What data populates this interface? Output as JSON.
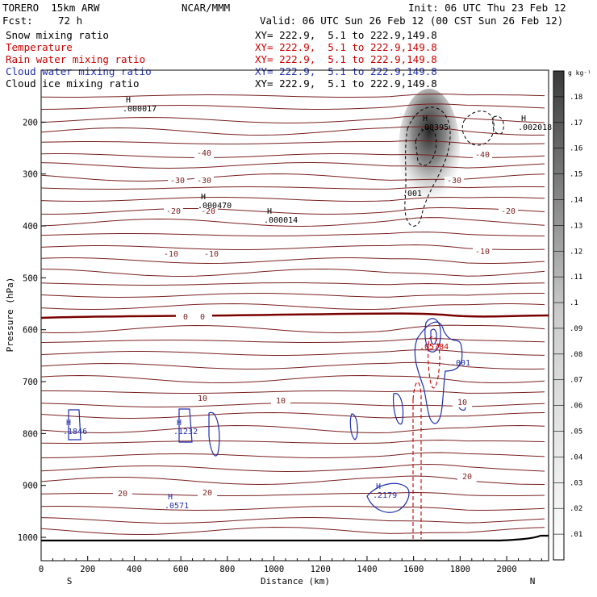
{
  "header": {
    "model": "TORERO  15km ARW",
    "org": "NCAR/MMM",
    "init": "Init: 06 UTC Thu 23 Feb 12",
    "fcst_label": "Fcst:",
    "fcst_value": "72 h",
    "valid": "Valid: 06 UTC Sun 26 Feb 12 (00 CST Sun 26 Feb 12)"
  },
  "legend": [
    {
      "name": "Snow mixing ratio",
      "xy": "XY= 222.9,  5.1 to 222.9,149.8",
      "color": "#000000"
    },
    {
      "name": "Temperature",
      "xy": "XY= 222.9,  5.1 to 222.9,149.8",
      "color": "#cc0000"
    },
    {
      "name": "Rain water mixing ratio",
      "xy": "XY= 222.9,  5.1 to 222.9,149.8",
      "color": "#cc0000"
    },
    {
      "name": "Cloud water mixing ratio",
      "xy": "XY= 222.9,  5.1 to 222.9,149.8",
      "color": "#1f2fb0"
    },
    {
      "name": "Cloud ice mixing ratio",
      "xy": "XY= 222.9,  5.1 to 222.9,149.8",
      "color": "#000000"
    }
  ],
  "chart_data": {
    "type": "cross-section contour",
    "xlabel": "Distance (km)",
    "ylabel": "Pressure (hPa)",
    "xlim": [
      0,
      2180
    ],
    "ylim": [
      1045,
      100
    ],
    "xticks": [
      0,
      200,
      400,
      600,
      800,
      1000,
      1200,
      1400,
      1600,
      1800,
      2000
    ],
    "yticks": [
      200,
      300,
      400,
      500,
      600,
      700,
      800,
      900,
      1000
    ],
    "left_end": "S",
    "right_end": "N",
    "colorbar": {
      "unit": "g kg⁻¹",
      "labels": [
        ".01",
        ".02",
        ".03",
        ".04",
        ".05",
        ".06",
        ".07",
        ".08",
        ".09",
        ".1",
        ".11",
        ".12",
        ".13",
        ".14",
        ".15",
        ".16",
        ".17",
        ".18"
      ]
    },
    "temperature_labels": [
      "-40",
      "-40",
      "-30",
      "-30",
      "-30",
      "-20",
      "-20",
      "-20",
      "-10",
      "-10",
      "-10",
      "0",
      "0",
      "10",
      "10",
      "10",
      "20",
      "20",
      "20"
    ],
    "maxima_labels": [
      {
        "tag": "H",
        "value": ".000017",
        "color": "#000000"
      },
      {
        "tag": "H",
        "value": ".00395",
        "color": "#000000"
      },
      {
        "tag": "H",
        "value": ".002018",
        "color": "#000000"
      },
      {
        "tag": "H",
        "value": ".000470",
        "color": "#000000"
      },
      {
        "tag": "H",
        "value": ".000014",
        "color": "#000000"
      },
      {
        "tag": "",
        "value": ".001",
        "color": "#000000"
      },
      {
        "tag": "H",
        "value": ".1846",
        "color": "#1f2fb0"
      },
      {
        "tag": "H",
        "value": ".1232",
        "color": "#1f2fb0"
      },
      {
        "tag": "H",
        "value": ".0571",
        "color": "#1f2fb0"
      },
      {
        "tag": "H",
        "value": ".2179",
        "color": "#1f2fb0"
      },
      {
        "tag": "",
        "value": ".001",
        "color": "#1f2fb0"
      },
      {
        "tag": "",
        "value": ".05784",
        "color": "#cc0000"
      }
    ],
    "colors": {
      "temperature": "#7a1f1f",
      "zero_isotherm": "#7a0000",
      "cloud_water": "#1f2fb0",
      "rain": "#cc0000",
      "snow": "#000000",
      "terrain": "#000000"
    }
  }
}
